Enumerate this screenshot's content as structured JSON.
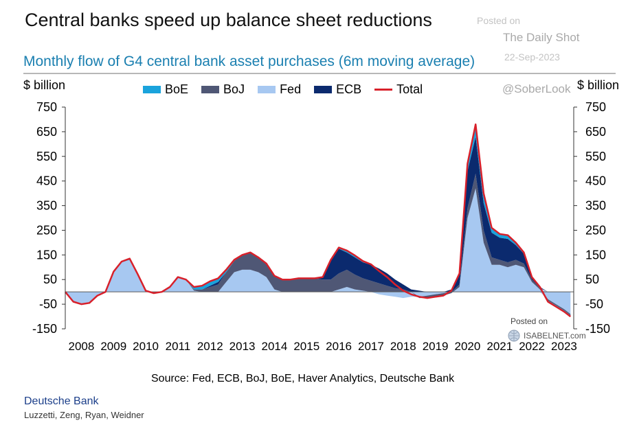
{
  "header": {
    "title": "Central banks speed up balance sheet reductions",
    "subtitle": "Monthly flow of G4 central bank asset purchases (6m moving average)"
  },
  "watermark": {
    "posted_on": "Posted on",
    "source": "The Daily Shot",
    "date": "22-Sep-2023",
    "handle": "@SoberLook"
  },
  "footer": {
    "source": "Source: Fed, ECB, BoJ, BoE, Haver Analytics, Deutsche Bank",
    "company": "Deutsche Bank",
    "authors": "Luzzetti, Zeng, Ryan, Weidner"
  },
  "isabelnet": {
    "posted_on": "Posted on",
    "site": "ISABELNET.com"
  },
  "colors": {
    "boe": "#1aa3dc",
    "boj": "#4f5775",
    "fed": "#a7c8f1",
    "ecb": "#0b2a6e",
    "total": "#d8202a"
  },
  "chart_data": {
    "type": "area",
    "stacked": true,
    "title": "Monthly flow of G4 central bank asset purchases (6m moving average)",
    "ylabel_left": "$ billion",
    "ylabel_right": "$ billion",
    "ylim": [
      -150,
      750
    ],
    "yticks": [
      -150,
      -50,
      50,
      150,
      250,
      350,
      450,
      550,
      650,
      750
    ],
    "xlim": [
      2008.0,
      2023.8
    ],
    "xticks": [
      2008,
      2009,
      2010,
      2011,
      2012,
      2013,
      2014,
      2015,
      2016,
      2017,
      2018,
      2019,
      2020,
      2021,
      2022,
      2023
    ],
    "x": [
      2008.0,
      2008.25,
      2008.5,
      2008.75,
      2009.0,
      2009.25,
      2009.5,
      2009.75,
      2010.0,
      2010.25,
      2010.5,
      2010.75,
      2011.0,
      2011.25,
      2011.5,
      2011.75,
      2012.0,
      2012.25,
      2012.5,
      2012.75,
      2013.0,
      2013.25,
      2013.5,
      2013.75,
      2014.0,
      2014.25,
      2014.5,
      2014.75,
      2015.0,
      2015.25,
      2015.5,
      2015.75,
      2016.0,
      2016.25,
      2016.5,
      2016.75,
      2017.0,
      2017.25,
      2017.5,
      2017.75,
      2018.0,
      2018.25,
      2018.5,
      2018.75,
      2019.0,
      2019.25,
      2019.5,
      2019.75,
      2020.0,
      2020.25,
      2020.5,
      2020.75,
      2021.0,
      2021.25,
      2021.5,
      2021.75,
      2022.0,
      2022.25,
      2022.5,
      2022.75,
      2023.0,
      2023.25,
      2023.5,
      2023.7
    ],
    "series": [
      {
        "name": "BoE",
        "values": [
          0,
          0,
          0,
          0,
          0,
          0,
          2,
          3,
          5,
          2,
          0,
          0,
          0,
          0,
          0,
          0,
          10,
          15,
          18,
          15,
          10,
          5,
          0,
          0,
          0,
          0,
          0,
          0,
          0,
          0,
          0,
          0,
          0,
          0,
          5,
          8,
          8,
          5,
          2,
          0,
          0,
          0,
          0,
          0,
          0,
          0,
          0,
          0,
          0,
          5,
          30,
          50,
          40,
          20,
          15,
          15,
          10,
          5,
          0,
          0,
          -5,
          -5,
          -5,
          -5
        ]
      },
      {
        "name": "BoJ",
        "values": [
          0,
          0,
          0,
          0,
          0,
          0,
          0,
          0,
          0,
          0,
          0,
          0,
          0,
          0,
          0,
          0,
          5,
          10,
          20,
          30,
          40,
          45,
          60,
          70,
          60,
          55,
          55,
          50,
          50,
          55,
          55,
          55,
          50,
          50,
          65,
          70,
          60,
          50,
          45,
          35,
          25,
          15,
          10,
          0,
          -5,
          -10,
          -10,
          -10,
          -5,
          10,
          40,
          60,
          50,
          30,
          20,
          20,
          20,
          15,
          10,
          5,
          -5,
          -5,
          -5,
          -5
        ]
      },
      {
        "name": "Fed",
        "values": [
          0,
          -40,
          -50,
          -45,
          -15,
          0,
          80,
          120,
          130,
          70,
          5,
          -5,
          0,
          20,
          60,
          50,
          5,
          0,
          0,
          0,
          40,
          80,
          90,
          90,
          80,
          60,
          10,
          0,
          0,
          0,
          0,
          0,
          0,
          0,
          10,
          20,
          10,
          5,
          0,
          -10,
          -15,
          -20,
          -25,
          -20,
          -20,
          -15,
          -10,
          -5,
          0,
          20,
          300,
          420,
          200,
          110,
          110,
          100,
          110,
          100,
          40,
          10,
          -30,
          -50,
          -70,
          -90
        ]
      },
      {
        "name": "ECB",
        "values": [
          0,
          0,
          0,
          0,
          0,
          0,
          0,
          0,
          0,
          0,
          0,
          0,
          0,
          0,
          0,
          0,
          0,
          0,
          5,
          10,
          0,
          0,
          0,
          0,
          0,
          0,
          0,
          0,
          0,
          0,
          0,
          0,
          10,
          80,
          100,
          70,
          70,
          65,
          65,
          60,
          50,
          35,
          20,
          10,
          5,
          0,
          0,
          0,
          10,
          40,
          150,
          150,
          110,
          100,
          90,
          95,
          60,
          40,
          10,
          5,
          0,
          0,
          0,
          0
        ]
      },
      {
        "name": "Total",
        "type": "line",
        "values": [
          0,
          -40,
          -50,
          -45,
          -15,
          0,
          82,
          123,
          135,
          72,
          5,
          -5,
          0,
          20,
          60,
          50,
          20,
          25,
          43,
          55,
          90,
          130,
          150,
          160,
          140,
          115,
          65,
          50,
          50,
          55,
          55,
          55,
          60,
          130,
          180,
          168,
          148,
          125,
          112,
          85,
          60,
          30,
          5,
          -10,
          -20,
          -25,
          -20,
          -15,
          5,
          75,
          520,
          680,
          400,
          260,
          235,
          230,
          200,
          160,
          60,
          20,
          -40,
          -60,
          -80,
          -100
        ]
      }
    ],
    "legend": [
      "BoE",
      "BoJ",
      "Fed",
      "ECB",
      "Total"
    ],
    "legend_position": "top"
  }
}
